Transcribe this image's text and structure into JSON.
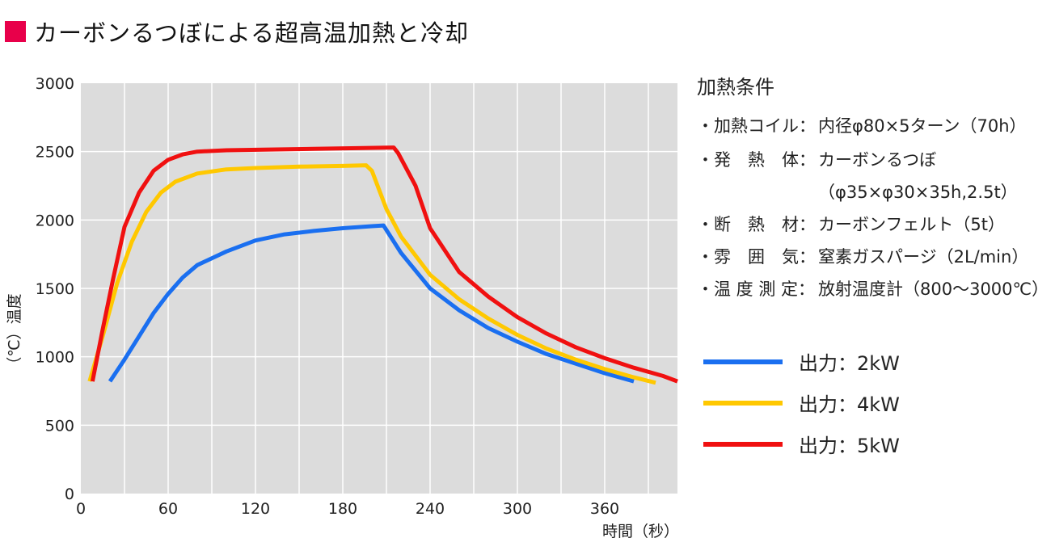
{
  "title": "カーボンるつぼによる超高温加熱と冷却",
  "colors": {
    "title_marker": "#e8004a",
    "plot_bg": "#dcdcdc"
  },
  "conditions": {
    "heading": "加熱条件",
    "items": [
      {
        "label": "・加熱コイル：",
        "value": "内径φ80×5ターン（70h）"
      },
      {
        "label": "・発　熱　体：",
        "value": "カーボンるつぼ"
      },
      {
        "label": "",
        "value": "（φ35×φ30×35h,2.5t）"
      },
      {
        "label": "・断　熱　材：",
        "value": "カーボンフェルト（5t）"
      },
      {
        "label": "・雰　囲　気：",
        "value": "窒素ガスパージ（2L/min）"
      },
      {
        "label": "・温 度 測 定：",
        "value": "放射温度計（800～3000℃）"
      }
    ]
  },
  "chart_data": {
    "type": "line",
    "xlabel": "時間（秒）",
    "ylabel": "（℃）温度",
    "xlim": [
      0,
      410
    ],
    "ylim": [
      0,
      3000
    ],
    "xticks": [
      0,
      60,
      120,
      180,
      240,
      300,
      360
    ],
    "yticks": [
      0,
      500,
      1000,
      1500,
      2000,
      2500,
      3000
    ],
    "grid": true,
    "legend_position": "right",
    "series": [
      {
        "name": "出力：2kW",
        "color": "#1a6ff0",
        "x": [
          20,
          30,
          40,
          50,
          60,
          70,
          80,
          100,
          120,
          140,
          160,
          180,
          200,
          208,
          220,
          240,
          260,
          280,
          300,
          320,
          340,
          360,
          380
        ],
        "y": [
          820,
          980,
          1150,
          1320,
          1460,
          1580,
          1670,
          1770,
          1850,
          1895,
          1920,
          1940,
          1955,
          1960,
          1760,
          1500,
          1340,
          1210,
          1110,
          1020,
          950,
          880,
          820
        ]
      },
      {
        "name": "出力：4kW",
        "color": "#ffc800",
        "x": [
          6,
          15,
          25,
          35,
          45,
          55,
          65,
          80,
          100,
          120,
          150,
          180,
          196,
          200,
          210,
          220,
          240,
          260,
          280,
          300,
          320,
          340,
          360,
          380,
          395
        ],
        "y": [
          820,
          1150,
          1540,
          1840,
          2060,
          2200,
          2280,
          2340,
          2370,
          2380,
          2390,
          2395,
          2400,
          2360,
          2080,
          1880,
          1600,
          1420,
          1280,
          1160,
          1060,
          980,
          910,
          850,
          810
        ]
      },
      {
        "name": "出力：5kW",
        "color": "#f01010",
        "x": [
          8,
          15,
          22,
          30,
          40,
          50,
          60,
          70,
          80,
          100,
          130,
          160,
          190,
          215,
          218,
          230,
          240,
          260,
          280,
          300,
          320,
          340,
          360,
          380,
          400,
          410
        ],
        "y": [
          820,
          1200,
          1560,
          1950,
          2200,
          2360,
          2440,
          2480,
          2500,
          2510,
          2515,
          2520,
          2525,
          2530,
          2490,
          2250,
          1940,
          1620,
          1440,
          1290,
          1170,
          1070,
          990,
          920,
          860,
          820
        ]
      }
    ]
  }
}
